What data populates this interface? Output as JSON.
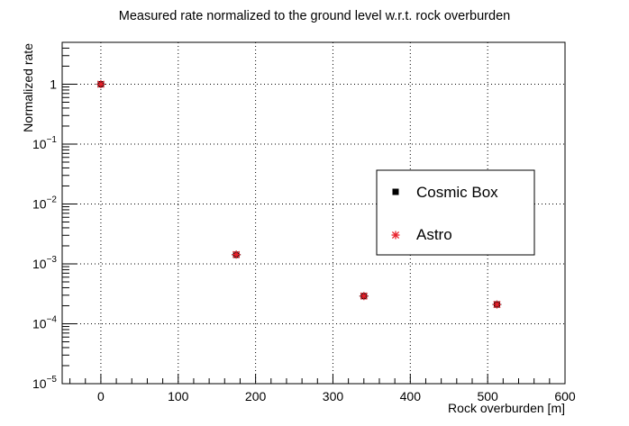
{
  "chart_data": {
    "type": "scatter",
    "title": "Measured rate normalized to the ground level w.r.t. rock overburden",
    "xlabel": "Rock overburden [m]",
    "ylabel": "Normalized rate",
    "xlim": [
      -50,
      600
    ],
    "ylim": [
      1e-05,
      5
    ],
    "yscale": "log",
    "grid": true,
    "legend_position": "right",
    "x_ticks": [
      {
        "value": 0,
        "label": "0"
      },
      {
        "value": 100,
        "label": "100"
      },
      {
        "value": 200,
        "label": "200"
      },
      {
        "value": 300,
        "label": "300"
      },
      {
        "value": 400,
        "label": "400"
      },
      {
        "value": 500,
        "label": "500"
      },
      {
        "value": 600,
        "label": "600"
      }
    ],
    "y_ticks": [
      {
        "value": 1,
        "base": "1",
        "exp": ""
      },
      {
        "value": 0.1,
        "base": "10",
        "exp": "−1"
      },
      {
        "value": 0.01,
        "base": "10",
        "exp": "−2"
      },
      {
        "value": 0.001,
        "base": "10",
        "exp": "−3"
      },
      {
        "value": 0.0001,
        "base": "10",
        "exp": "−4"
      },
      {
        "value": 1e-05,
        "base": "10",
        "exp": "−5"
      }
    ],
    "series": [
      {
        "name": "Cosmic Box",
        "marker": "square",
        "color": "#000000",
        "x": [
          0,
          175,
          340,
          512
        ],
        "y": [
          1.0,
          0.00142,
          0.00029,
          0.00021
        ]
      },
      {
        "name": "Astro",
        "marker": "star",
        "color": "#e8202a",
        "x": [
          0,
          175,
          340,
          512
        ],
        "y": [
          1.0,
          0.00143,
          0.00029,
          0.00021
        ]
      }
    ]
  }
}
